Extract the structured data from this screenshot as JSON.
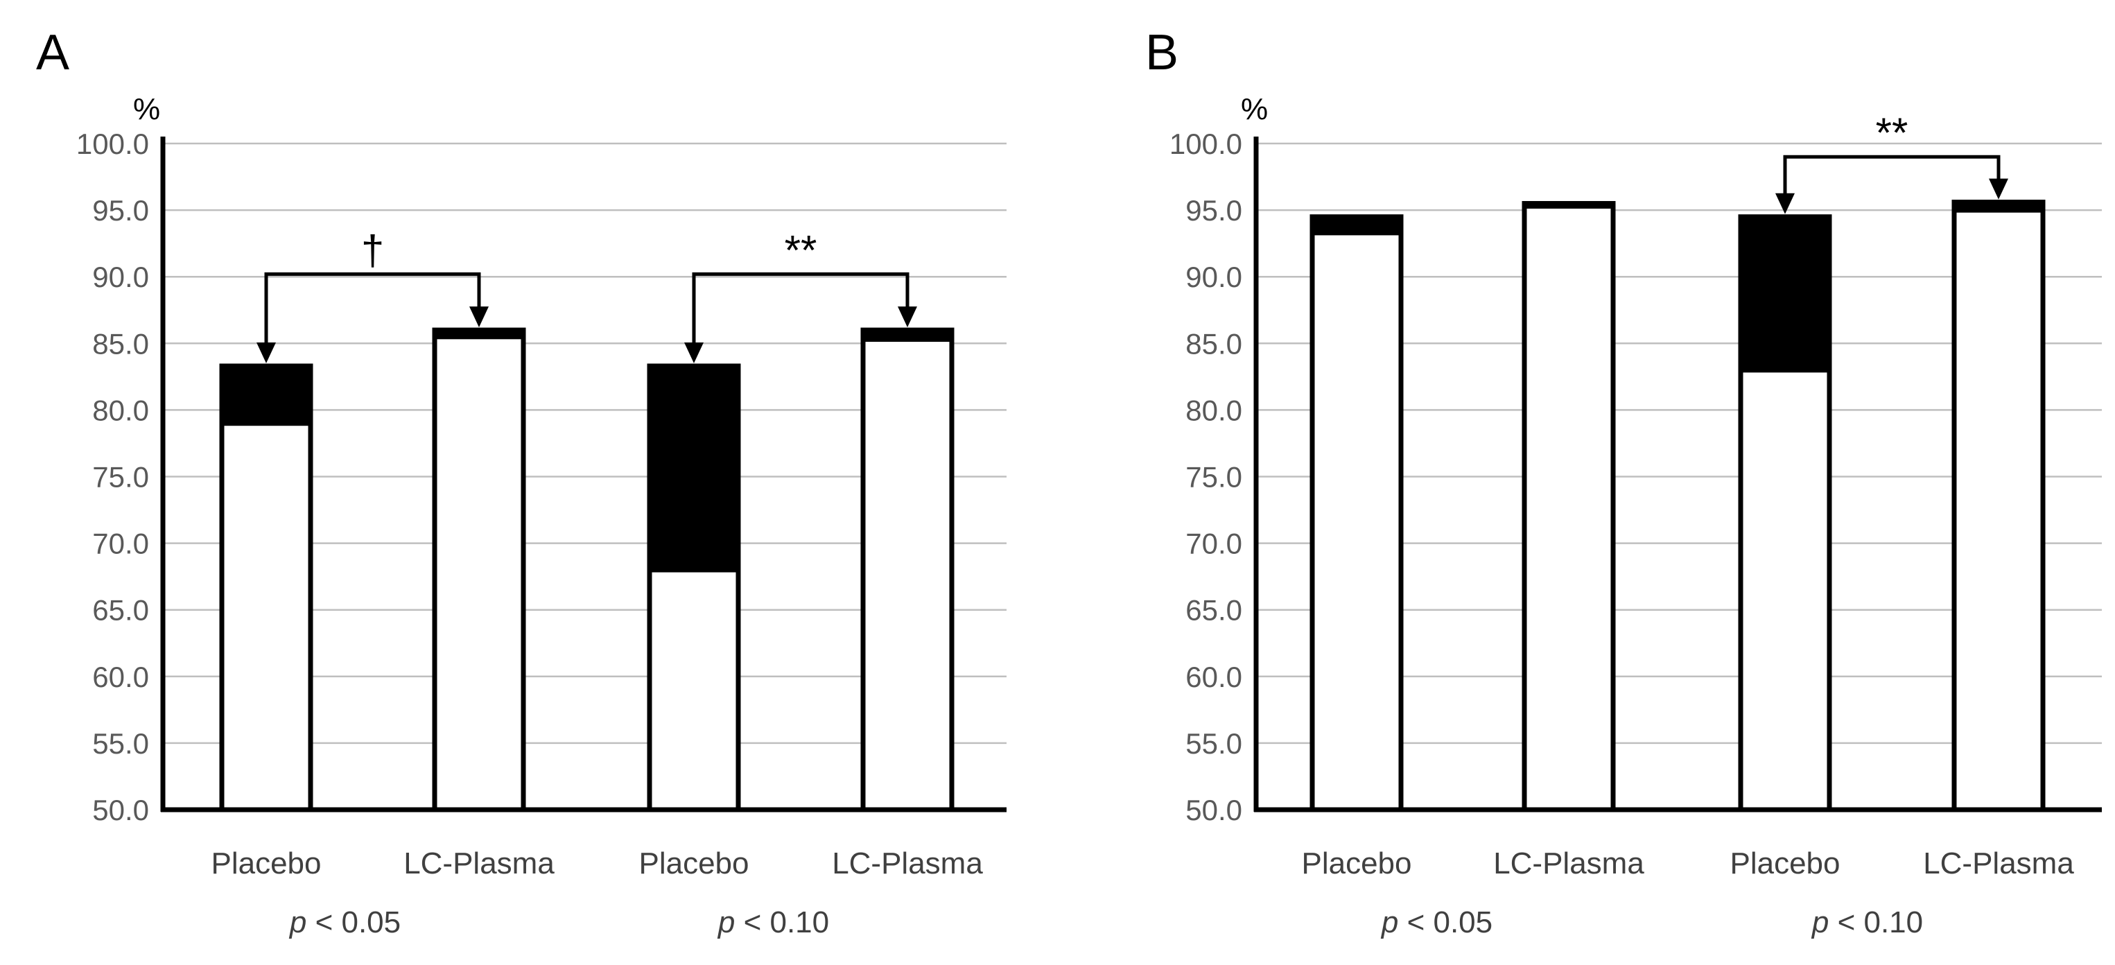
{
  "chart_data": [
    {
      "type": "bar",
      "panel": "A",
      "ylabel": "%",
      "ylim": [
        50.0,
        100.0
      ],
      "ytick_step": 5,
      "yticks": [
        "50.0",
        "55.0",
        "60.0",
        "65.0",
        "70.0",
        "75.0",
        "80.0",
        "85.0",
        "90.0",
        "95.0",
        "100.0"
      ],
      "grid": true,
      "categories": [
        "Placebo",
        "LC-Plasma",
        "Placebo",
        "LC-Plasma"
      ],
      "series": [
        {
          "name": "white",
          "values": [
            79.0,
            85.5,
            68.0,
            85.3
          ]
        },
        {
          "name": "black",
          "values": [
            4.3,
            0.5,
            15.3,
            0.7
          ]
        }
      ],
      "groups": [
        {
          "label_prefix": "p",
          "label_rest": " < 0.05",
          "bars": [
            0,
            1
          ]
        },
        {
          "label_prefix": "p",
          "label_rest": " < 0.10",
          "bars": [
            2,
            3
          ]
        }
      ],
      "comparisons": [
        {
          "from": 0,
          "to": 1,
          "level": 90.2,
          "symbol": "†"
        },
        {
          "from": 2,
          "to": 3,
          "level": 90.2,
          "symbol": "**"
        }
      ],
      "colors": {
        "white": "#ffffff",
        "black": "#000000",
        "tick": "#595959",
        "label": "#404040",
        "grid": "#bfbfbf"
      }
    },
    {
      "type": "bar",
      "panel": "B",
      "ylabel": "%",
      "ylim": [
        50.0,
        100.0
      ],
      "ytick_step": 5,
      "yticks": [
        "50.0",
        "55.0",
        "60.0",
        "65.0",
        "70.0",
        "75.0",
        "80.0",
        "85.0",
        "90.0",
        "95.0",
        "100.0"
      ],
      "grid": true,
      "categories": [
        "Placebo",
        "LC-Plasma",
        "Placebo",
        "LC-Plasma"
      ],
      "series": [
        {
          "name": "white",
          "values": [
            93.3,
            95.3,
            83.0,
            95.0
          ]
        },
        {
          "name": "black",
          "values": [
            1.2,
            0.2,
            11.5,
            0.6
          ]
        }
      ],
      "groups": [
        {
          "label_prefix": "p",
          "label_rest": " < 0.05",
          "bars": [
            0,
            1
          ]
        },
        {
          "label_prefix": "p",
          "label_rest": " < 0.10",
          "bars": [
            2,
            3
          ]
        }
      ],
      "comparisons": [
        {
          "from": 2,
          "to": 3,
          "level": 99.0,
          "symbol": "**"
        }
      ],
      "colors": {
        "white": "#ffffff",
        "black": "#000000",
        "tick": "#595959",
        "label": "#404040",
        "grid": "#bfbfbf"
      }
    }
  ]
}
